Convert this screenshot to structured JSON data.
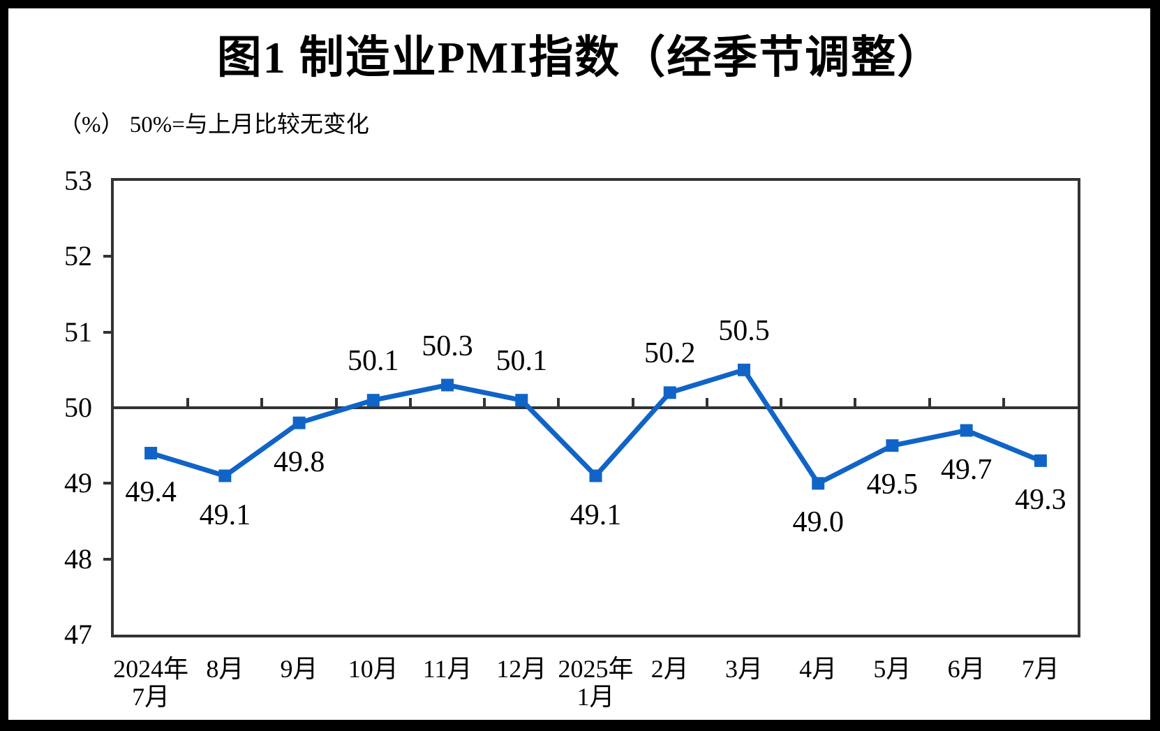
{
  "page": {
    "frame_color": "#000000",
    "panel_color": "#ffffff"
  },
  "header": {
    "title": "图1 制造业PMI指数（经季节调整）",
    "subtitle": "（%） 50%=与上月比较无变化"
  },
  "chart_data": {
    "type": "line",
    "title": "图1 制造业PMI指数（经季节调整）",
    "subtitle": "（%） 50%=与上月比较无变化",
    "categories": [
      [
        "2024年",
        "7月"
      ],
      [
        "8月"
      ],
      [
        "9月"
      ],
      [
        "10月"
      ],
      [
        "11月"
      ],
      [
        "12月"
      ],
      [
        "2025年",
        "1月"
      ],
      [
        "2月"
      ],
      [
        "3月"
      ],
      [
        "4月"
      ],
      [
        "5月"
      ],
      [
        "6月"
      ],
      [
        "7月"
      ]
    ],
    "series": [
      {
        "name": "制造业PMI指数（经季节调整）",
        "values": [
          49.4,
          49.1,
          49.8,
          50.1,
          50.3,
          50.1,
          49.1,
          50.2,
          50.5,
          49.0,
          49.5,
          49.7,
          49.3
        ],
        "labels": [
          "49.4",
          "49.1",
          "49.8",
          "50.1",
          "50.3",
          "50.1",
          "49.1",
          "50.2",
          "50.5",
          "49.0",
          "49.5",
          "49.7",
          "49.3"
        ]
      }
    ],
    "ylim": [
      47,
      53
    ],
    "yticks": [
      53,
      52,
      51,
      50,
      49,
      48,
      47
    ],
    "reference_value": 50,
    "grid": false,
    "legend_position": "none",
    "colors": {
      "line": "#1064C8",
      "marker": "#1064C8",
      "axis": "#333333",
      "text": "#000000"
    }
  }
}
